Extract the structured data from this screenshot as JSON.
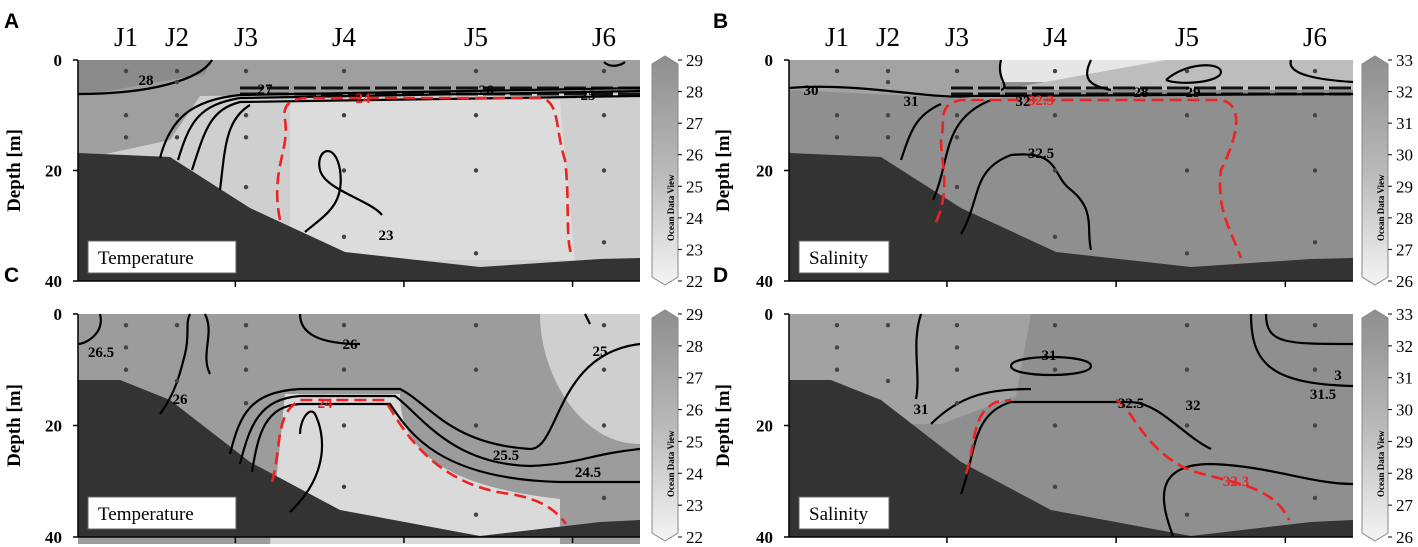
{
  "figure": {
    "stations": [
      "J1",
      "J2",
      "J3",
      "J4",
      "J5",
      "J6"
    ],
    "colorbar_watermark": "Ocean Data View"
  },
  "chart_data": [
    {
      "panel": "A",
      "type": "heatmap",
      "variable": "Temperature",
      "ylabel": "Depth [m]",
      "ylim": [
        0,
        40
      ],
      "yticks": [
        "0",
        "20",
        "40"
      ],
      "colorbar": {
        "min": 22,
        "max": 29,
        "ticks": [
          "22",
          "23",
          "24",
          "25",
          "26",
          "27",
          "28",
          "29"
        ]
      },
      "station_sample_depths_m": [
        [
          2,
          10,
          14
        ],
        [
          2,
          4,
          10,
          14
        ],
        [
          2,
          10,
          14,
          23
        ],
        [
          2,
          10,
          20,
          32
        ],
        [
          2,
          10,
          20,
          35
        ],
        [
          2,
          10,
          20,
          33
        ]
      ],
      "contour_labels": [
        {
          "text": "28",
          "color": "black"
        },
        {
          "text": "27",
          "color": "black"
        },
        {
          "text": "26",
          "color": "black"
        },
        {
          "text": "25",
          "color": "black"
        },
        {
          "text": "24",
          "color": "red"
        },
        {
          "text": "23",
          "color": "black"
        }
      ]
    },
    {
      "panel": "B",
      "type": "heatmap",
      "variable": "Salinity",
      "ylabel": "Depth [m]",
      "ylim": [
        0,
        40
      ],
      "yticks": [
        "0",
        "20",
        "40"
      ],
      "colorbar": {
        "min": 26,
        "max": 33,
        "ticks": [
          "26",
          "27",
          "28",
          "29",
          "30",
          "31",
          "32",
          "33"
        ]
      },
      "station_sample_depths_m": [
        [
          2,
          10,
          14
        ],
        [
          2,
          4,
          10,
          14
        ],
        [
          2,
          10,
          14,
          23
        ],
        [
          2,
          10,
          20,
          32
        ],
        [
          2,
          10,
          20,
          35
        ],
        [
          2,
          10,
          20,
          33
        ]
      ],
      "contour_labels": [
        {
          "text": "30",
          "color": "black"
        },
        {
          "text": "31",
          "color": "black"
        },
        {
          "text": "32",
          "color": "black"
        },
        {
          "text": "28",
          "color": "black"
        },
        {
          "text": "29",
          "color": "black"
        },
        {
          "text": "32.3",
          "color": "red"
        },
        {
          "text": "32.5",
          "color": "black"
        }
      ]
    },
    {
      "panel": "C",
      "type": "heatmap",
      "variable": "Temperature",
      "ylabel": "Depth [m]",
      "ylim": [
        0,
        40
      ],
      "yticks": [
        "0",
        "20",
        "40"
      ],
      "colorbar": {
        "min": 22,
        "max": 29,
        "ticks": [
          "22",
          "23",
          "24",
          "25",
          "26",
          "27",
          "28",
          "29"
        ]
      },
      "station_sample_depths_m": [
        [
          2,
          6,
          10
        ],
        [
          2,
          12
        ],
        [
          2,
          6,
          10,
          16
        ],
        [
          2,
          10,
          20,
          31
        ],
        [
          2,
          10,
          20,
          36
        ],
        [
          2,
          10,
          20,
          33
        ]
      ],
      "contour_labels": [
        {
          "text": "26.5",
          "color": "black"
        },
        {
          "text": "26",
          "color": "black"
        },
        {
          "text": "26",
          "color": "black"
        },
        {
          "text": "25",
          "color": "black"
        },
        {
          "text": "24",
          "color": "red"
        },
        {
          "text": "25.5",
          "color": "black"
        },
        {
          "text": "24.5",
          "color": "black"
        }
      ]
    },
    {
      "panel": "D",
      "type": "heatmap",
      "variable": "Salinity",
      "ylabel": "Depth [m]",
      "ylim": [
        0,
        40
      ],
      "yticks": [
        "0",
        "20",
        "40"
      ],
      "colorbar": {
        "min": 26,
        "max": 33,
        "ticks": [
          "26",
          "27",
          "28",
          "29",
          "30",
          "31",
          "32",
          "33"
        ]
      },
      "station_sample_depths_m": [
        [
          2,
          6,
          10
        ],
        [
          2,
          12
        ],
        [
          2,
          6,
          10,
          16
        ],
        [
          2,
          10,
          20,
          31
        ],
        [
          2,
          10,
          20,
          36
        ],
        [
          2,
          10,
          20,
          33
        ]
      ],
      "contour_labels": [
        {
          "text": "31",
          "color": "black"
        },
        {
          "text": "31",
          "color": "black"
        },
        {
          "text": "32.5",
          "color": "black"
        },
        {
          "text": "32",
          "color": "black"
        },
        {
          "text": "31.5",
          "color": "black"
        },
        {
          "text": "3",
          "color": "black"
        },
        {
          "text": "32.3",
          "color": "red"
        }
      ]
    }
  ]
}
